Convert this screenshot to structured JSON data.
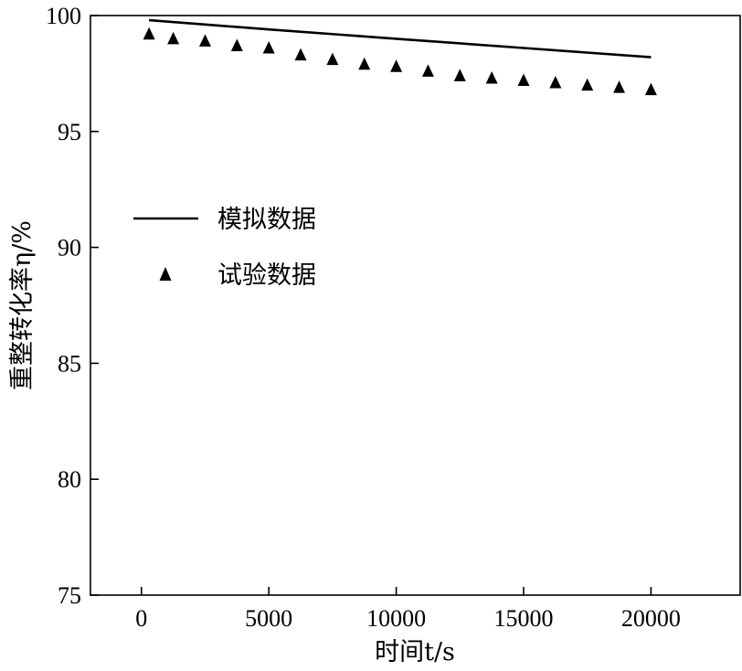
{
  "chart_data": {
    "type": "line",
    "xlabel": "时间t/s",
    "ylabel": "重整转化率η/%",
    "xlim": [
      -2000,
      23500
    ],
    "ylim": [
      75,
      100
    ],
    "xticks": [
      0,
      5000,
      10000,
      15000,
      20000
    ],
    "yticks": [
      75,
      80,
      85,
      90,
      95,
      100
    ],
    "grid": false,
    "legend_position": "left-middle",
    "series": [
      {
        "name": "模拟数据",
        "kind": "line",
        "color": "#000000",
        "x": [
          300,
          5000,
          10000,
          15000,
          20000
        ],
        "y": [
          99.8,
          99.4,
          99.0,
          98.6,
          98.2
        ]
      },
      {
        "name": "试验数据",
        "kind": "scatter",
        "marker": "triangle-up",
        "color": "#000000",
        "x": [
          300,
          1250,
          2500,
          3750,
          5000,
          6250,
          7500,
          8750,
          10000,
          11250,
          12500,
          13750,
          15000,
          16250,
          17500,
          18750,
          20000
        ],
        "y": [
          99.2,
          99.0,
          98.9,
          98.7,
          98.6,
          98.3,
          98.1,
          97.9,
          97.8,
          97.6,
          97.4,
          97.3,
          97.2,
          97.1,
          97.0,
          96.9,
          96.8
        ]
      }
    ]
  }
}
